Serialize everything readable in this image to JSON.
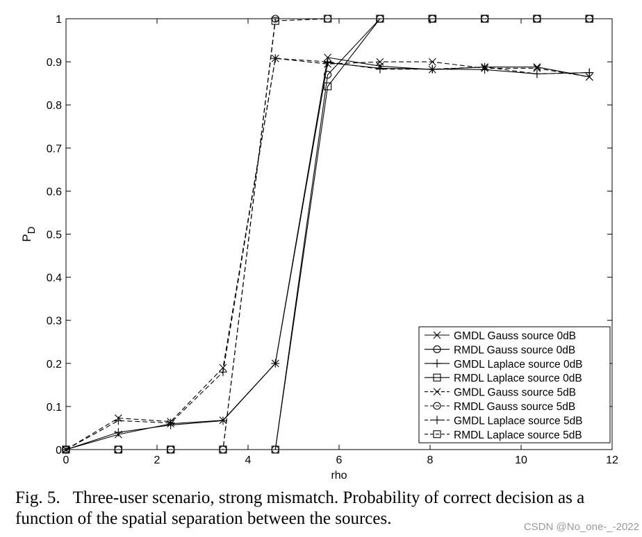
{
  "chart_data": {
    "type": "line",
    "xlabel": "rho",
    "ylabel": "P",
    "ylabel_subscript": "D",
    "xlim": [
      0,
      12
    ],
    "ylim": [
      0,
      1
    ],
    "x_ticks": [
      "0",
      "2",
      "4",
      "6",
      "8",
      "10",
      "12"
    ],
    "y_ticks": [
      "0",
      "0.1",
      "0.2",
      "0.3",
      "0.4",
      "0.5",
      "0.6",
      "0.7",
      "0.8",
      "0.9",
      "1"
    ],
    "grid": false,
    "legend_position": "bottom-right",
    "x": [
      0,
      1.15,
      2.3,
      3.45,
      4.6,
      5.75,
      6.9,
      8.05,
      9.2,
      10.35,
      11.5
    ],
    "series": [
      {
        "name": "GMDL Gauss source 0dB",
        "marker": "x",
        "dash": "solid",
        "values": [
          0,
          0.035,
          0.06,
          0.068,
          0.2,
          0.91,
          0.89,
          0.882,
          0.888,
          0.888,
          0.865
        ]
      },
      {
        "name": "RMDL Gauss source 0dB",
        "marker": "o",
        "dash": "solid",
        "values": [
          0,
          0,
          0,
          0,
          0,
          0.87,
          1,
          1,
          1,
          1,
          1
        ]
      },
      {
        "name": "GMDL Laplace source 0dB",
        "marker": "+",
        "dash": "solid",
        "values": [
          0,
          0.04,
          0.057,
          0.067,
          0.2,
          0.898,
          0.885,
          0.883,
          0.882,
          0.872,
          0.875
        ]
      },
      {
        "name": "RMDL Laplace source 0dB",
        "marker": "s",
        "dash": "solid",
        "values": [
          0,
          0,
          0,
          0,
          0,
          0.843,
          1,
          1,
          1,
          1,
          1
        ]
      },
      {
        "name": "GMDL Gauss source 5dB",
        "marker": "x",
        "dash": "dash",
        "values": [
          0,
          0.073,
          0.065,
          0.19,
          0.908,
          0.895,
          0.9,
          0.9,
          0.885,
          0.885,
          0.865
        ]
      },
      {
        "name": "RMDL Gauss source 5dB",
        "marker": "o",
        "dash": "dash",
        "values": [
          0,
          0,
          0,
          0,
          1,
          1,
          1,
          1,
          1,
          1,
          1
        ]
      },
      {
        "name": "GMDL Laplace source 5dB",
        "marker": "+",
        "dash": "dash",
        "values": [
          0,
          0.067,
          0.062,
          0.18,
          0.908,
          0.9,
          0.883,
          0.883,
          0.888,
          0.872,
          0.875
        ]
      },
      {
        "name": "RMDL Laplace source 5dB",
        "marker": "s",
        "dash": "dash",
        "values": [
          0,
          0,
          0,
          0,
          0.995,
          1,
          1,
          1,
          1,
          1,
          1
        ]
      }
    ]
  },
  "caption": {
    "figure_number": "Fig. 5.",
    "text": "Three-user scenario, strong mismatch. Probability of correct decision as a function of the spatial separation between the sources."
  },
  "watermark": "CSDN @No_one-_-2022",
  "colors": {
    "line": "#000000",
    "background": "#ffffff",
    "watermark": "#9a9a9a"
  }
}
